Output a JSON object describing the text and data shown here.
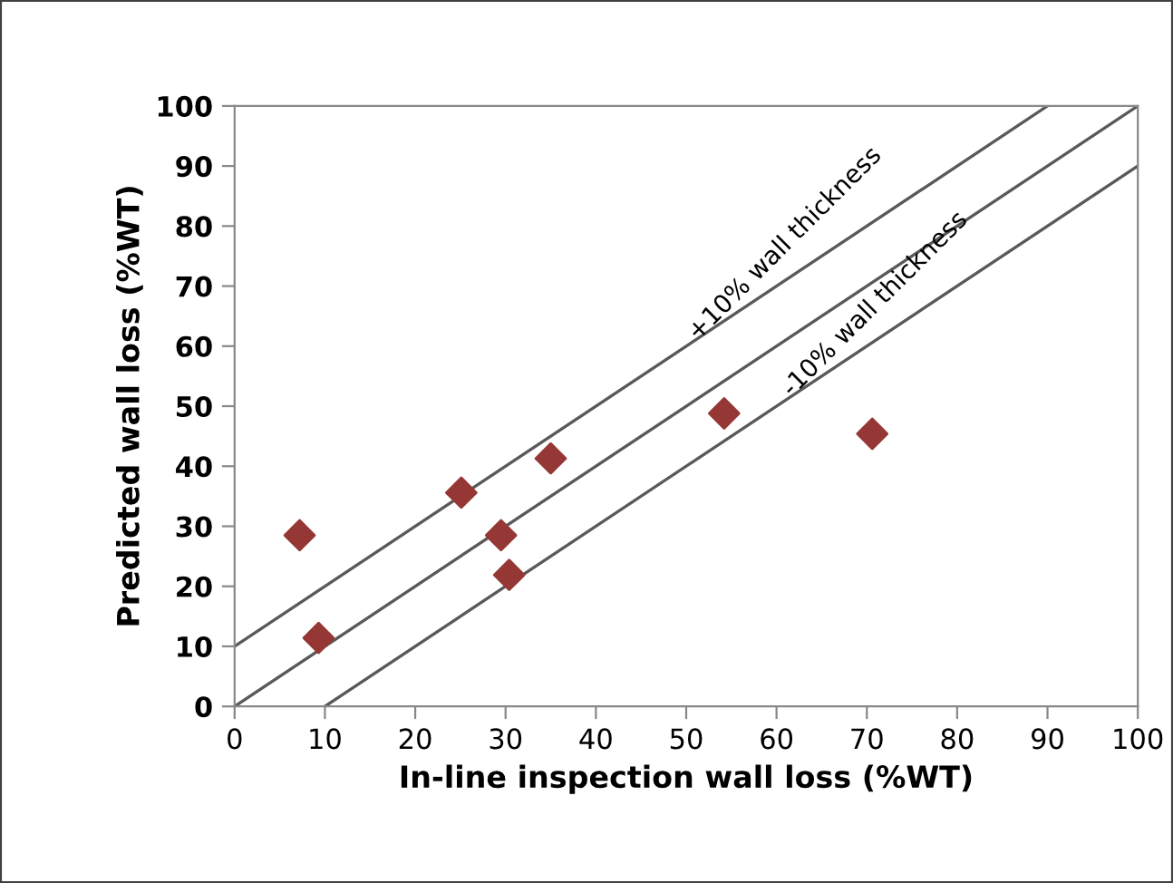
{
  "chart_data": {
    "type": "scatter",
    "xlabel": "In-line inspection wall loss (%WT)",
    "ylabel": "Predicted wall loss (%WT)",
    "xlim": [
      0,
      100
    ],
    "ylim": [
      0,
      100
    ],
    "xticks": [
      0,
      10,
      20,
      30,
      40,
      50,
      60,
      70,
      80,
      90,
      100
    ],
    "yticks": [
      0,
      10,
      20,
      30,
      40,
      50,
      60,
      70,
      80,
      90,
      100
    ],
    "grid": false,
    "legend": false,
    "marker": "diamond",
    "series": [
      {
        "color": "#953735",
        "x": [
          7.2,
          9.3,
          25.1,
          29.5,
          30.4,
          35.0,
          54.2,
          70.6
        ],
        "values": [
          28.5,
          11.4,
          35.6,
          28.5,
          21.9,
          41.3,
          48.8,
          45.4
        ]
      },
      {
        "type": "line",
        "color": "#595959",
        "marker": "none",
        "x": [
          0,
          90
        ],
        "values": [
          10,
          100
        ]
      },
      {
        "type": "line",
        "color": "#595959",
        "marker": "none",
        "x": [
          0,
          100
        ],
        "values": [
          0,
          100
        ]
      },
      {
        "type": "line",
        "color": "#595959",
        "marker": "none",
        "x": [
          10,
          100
        ],
        "values": [
          0,
          90
        ]
      }
    ],
    "annotations": [
      "+10% wall thickness",
      "-10% wall thickness"
    ]
  }
}
